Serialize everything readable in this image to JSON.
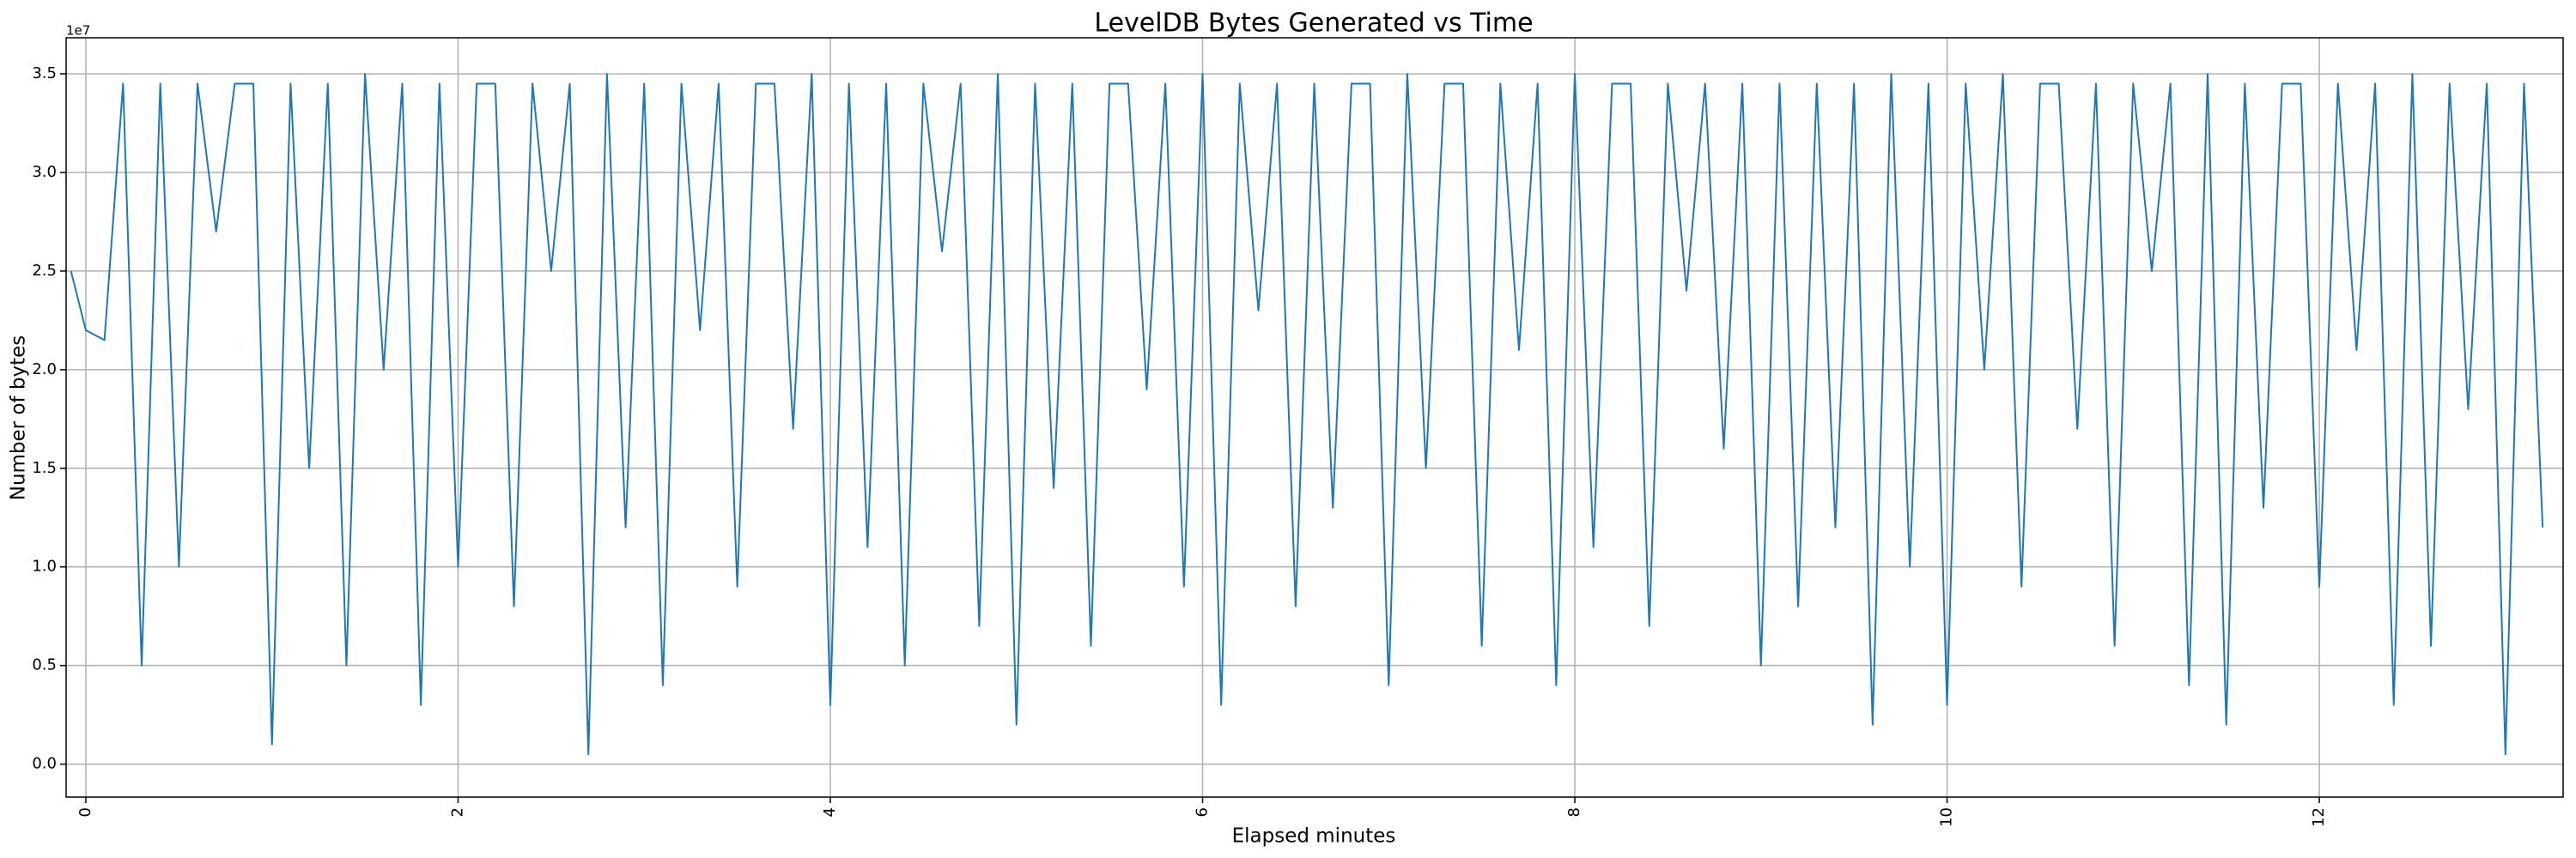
{
  "chart_data": {
    "type": "line",
    "title": "LevelDB Bytes Generated vs Time",
    "x_label": "Elapsed minutes",
    "y_label": "Number of bytes",
    "y_offset_label": "1e7",
    "grid": true,
    "xlim": [
      -0.106,
      13.31
    ],
    "ylim": [
      -1670000,
      36830000
    ],
    "xticks": [
      0,
      2,
      4,
      6,
      8,
      10,
      12
    ],
    "yticks": [
      {
        "value": 0,
        "label": "0.0"
      },
      {
        "value": 5000000,
        "label": "0.5"
      },
      {
        "value": 10000000,
        "label": "1.0"
      },
      {
        "value": 15000000,
        "label": "1.5"
      },
      {
        "value": 20000000,
        "label": "2.0"
      },
      {
        "value": 25000000,
        "label": "2.5"
      },
      {
        "value": 30000000,
        "label": "3.0"
      },
      {
        "value": 35000000,
        "label": "3.5"
      }
    ],
    "x": [
      -0.08,
      0,
      0.1,
      0.2,
      0.3,
      0.4,
      0.5,
      0.6,
      0.7,
      0.8,
      0.9,
      1,
      1.1,
      1.2,
      1.3,
      1.4,
      1.5,
      1.6,
      1.7,
      1.8,
      1.9,
      2,
      2.1,
      2.2,
      2.3,
      2.4,
      2.5,
      2.6,
      2.7,
      2.8,
      2.9,
      3,
      3.1,
      3.2,
      3.3,
      3.4,
      3.5,
      3.6,
      3.7,
      3.8,
      3.9,
      4,
      4.1,
      4.2,
      4.3,
      4.4,
      4.5,
      4.6,
      4.7,
      4.8,
      4.9,
      5,
      5.1,
      5.2,
      5.3,
      5.4,
      5.5,
      5.6,
      5.7,
      5.8,
      5.9,
      6,
      6.1,
      6.2,
      6.3,
      6.4,
      6.5,
      6.6,
      6.7,
      6.8,
      6.9,
      7,
      7.1,
      7.2,
      7.3,
      7.4,
      7.5,
      7.6,
      7.7,
      7.8,
      7.9,
      8,
      8.1,
      8.2,
      8.3,
      8.4,
      8.5,
      8.6,
      8.7,
      8.8,
      8.9,
      9,
      9.1,
      9.2,
      9.3,
      9.4,
      9.5,
      9.6,
      9.7,
      9.8,
      9.9,
      10,
      10.1,
      10.2,
      10.3,
      10.4,
      10.5,
      10.6,
      10.7,
      10.8,
      10.9,
      11,
      11.1,
      11.2,
      11.3,
      11.4,
      11.5,
      11.6,
      11.7,
      11.8,
      11.9,
      12,
      12.1,
      12.2,
      12.3,
      12.4,
      12.5,
      12.6,
      12.7,
      12.8,
      12.9,
      13,
      13.1,
      13.2
    ],
    "series": [
      {
        "color": "#1f77b4",
        "values": [
          25000000.0,
          22000000.0,
          21500000.0,
          34500000.0,
          5000000.0,
          34500000.0,
          10000000.0,
          34500000.0,
          27000000.0,
          34500000.0,
          34500000.0,
          1000000.0,
          34500000.0,
          15000000.0,
          34500000.0,
          5000000.0,
          35000000.0,
          20000000.0,
          34500000.0,
          3000000.0,
          34500000.0,
          10000000.0,
          34500000.0,
          34500000.0,
          8000000.0,
          34500000.0,
          25000000.0,
          34500000.0,
          500000.0,
          35000000.0,
          12000000.0,
          34500000.0,
          4000000.0,
          34500000.0,
          22000000.0,
          34500000.0,
          9000000.0,
          34500000.0,
          34500000.0,
          17000000.0,
          35000000.0,
          3000000.0,
          34500000.0,
          11000000.0,
          34500000.0,
          5000000.0,
          34500000.0,
          26000000.0,
          34500000.0,
          7000000.0,
          35000000.0,
          2000000.0,
          34500000.0,
          14000000.0,
          34500000.0,
          6000000.0,
          34500000.0,
          34500000.0,
          19000000.0,
          34500000.0,
          9000000.0,
          35000000.0,
          3000000.0,
          34500000.0,
          23000000.0,
          34500000.0,
          8000000.0,
          34500000.0,
          13000000.0,
          34500000.0,
          34500000.0,
          4000000.0,
          35000000.0,
          15000000.0,
          34500000.0,
          34500000.0,
          6000000.0,
          34500000.0,
          21000000.0,
          34500000.0,
          4000000.0,
          35000000.0,
          11000000.0,
          34500000.0,
          34500000.0,
          7000000.0,
          34500000.0,
          24000000.0,
          34500000.0,
          16000000.0,
          34500000.0,
          5000000.0,
          34500000.0,
          8000000.0,
          34500000.0,
          12000000.0,
          34500000.0,
          2000000.0,
          35000000.0,
          10000000.0,
          34500000.0,
          3000000.0,
          34500000.0,
          20000000.0,
          35000000.0,
          9000000.0,
          34500000.0,
          34500000.0,
          17000000.0,
          34500000.0,
          6000000.0,
          34500000.0,
          25000000.0,
          34500000.0,
          4000000.0,
          35000000.0,
          2000000.0,
          34500000.0,
          13000000.0,
          34500000.0,
          34500000.0,
          9000000.0,
          34500000.0,
          21000000.0,
          34500000.0,
          3000000.0,
          35000000.0,
          6000000.0,
          34500000.0,
          18000000.0,
          34500000.0,
          500000.0,
          34500000.0,
          12000000.0
        ]
      }
    ]
  }
}
